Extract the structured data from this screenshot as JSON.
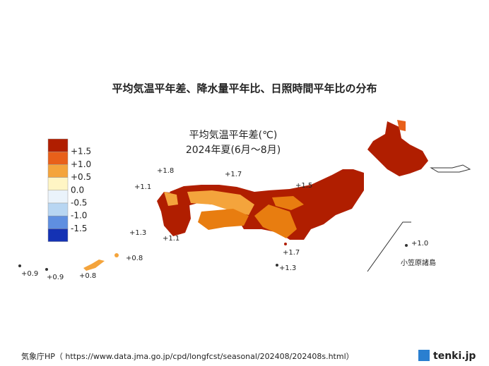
{
  "title": "平均気温平年差、降水量平年比、日照時間平年比の分布",
  "map_title": [
    "平均気温平年差(℃)",
    "2024年夏(6月～8月)"
  ],
  "legend": [
    {
      "label": "+1.5",
      "color": "#b01e00"
    },
    {
      "label": "+1.0",
      "color": "#e8601a"
    },
    {
      "label": "+0.5",
      "color": "#f4a43c"
    },
    {
      "label": "0.0",
      "color": "#fff5c4"
    },
    {
      "label": "-0.5",
      "color": "#eaf3fb"
    },
    {
      "label": "-1.0",
      "color": "#b8d6f2"
    },
    {
      "label": "-1.5",
      "color": "#5f8fe0"
    }
  ],
  "legend_bottom_color": "#1432b4",
  "stations": [
    "+1.8",
    "+1.1",
    "+1.7",
    "+1.5",
    "+1.3",
    "+1.1",
    "+1.7",
    "+1.3",
    "+0.8",
    "+0.9",
    "+0.9",
    "+0.8",
    "+1.0"
  ],
  "inset_label": "小笠原諸島",
  "source": "気象庁HP（ https://www.data.jma.go.jp/cpd/longfcst/seasonal/202408/202408s.html）",
  "logo": "tenki.jp"
}
